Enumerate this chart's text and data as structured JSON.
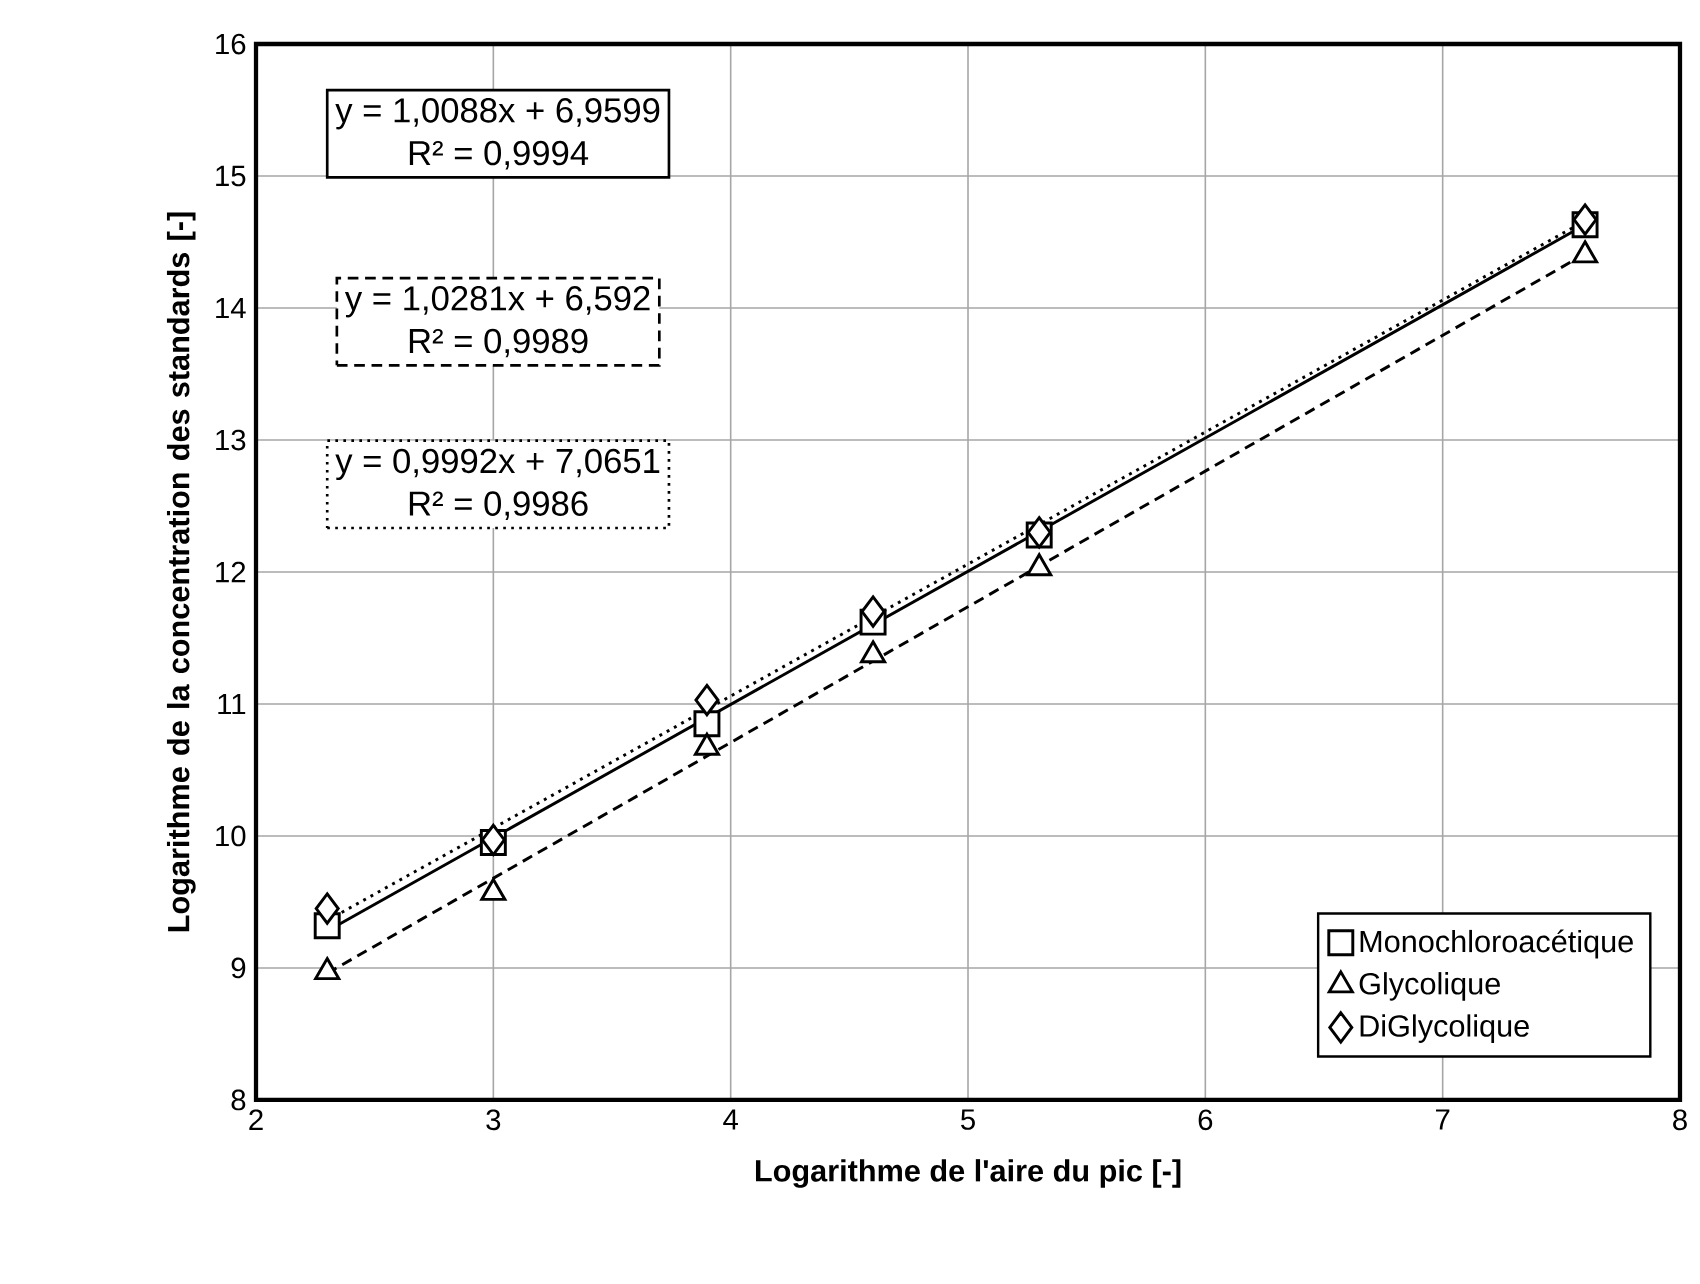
{
  "chart_data": {
    "type": "scatter",
    "xlabel": "Logarithme de l'aire du pic [-]",
    "ylabel": "Logarithme de la concentration des standards [-]",
    "xlim": [
      2,
      8
    ],
    "ylim": [
      8,
      16
    ],
    "xticks": [
      2,
      3,
      4,
      5,
      6,
      7,
      8
    ],
    "yticks": [
      8,
      9,
      10,
      11,
      12,
      13,
      14,
      15,
      16
    ],
    "grid": true,
    "legend": "bottom right",
    "series": [
      {
        "name": "Monochloroacétique",
        "marker": "square",
        "color": "#000000",
        "x": [
          2.3,
          3.0,
          3.9,
          4.6,
          5.3,
          7.6
        ],
        "values": [
          9.32,
          9.95,
          10.85,
          11.62,
          12.28,
          14.63
        ]
      },
      {
        "name": "Glycolique",
        "marker": "triangle",
        "color": "#000000",
        "x": [
          2.3,
          3.0,
          3.9,
          4.6,
          5.3,
          7.6
        ],
        "values": [
          8.97,
          9.57,
          10.67,
          11.37,
          12.03,
          14.4
        ]
      },
      {
        "name": "DiGlycolique",
        "marker": "diamond",
        "color": "#000000",
        "x": [
          2.3,
          3.0,
          3.9,
          4.6,
          5.3,
          7.6
        ],
        "values": [
          9.45,
          9.97,
          11.03,
          11.7,
          12.3,
          14.67
        ]
      },
      {
        "type": "line",
        "line_style": "solid",
        "color": "#000000",
        "x": [
          2.3,
          7.6
        ],
        "values": [
          9.28,
          14.63
        ]
      },
      {
        "type": "line",
        "line_style": "dashed",
        "color": "#000000",
        "x": [
          2.3,
          7.6
        ],
        "values": [
          8.96,
          14.41
        ]
      },
      {
        "type": "line",
        "line_style": "dotted",
        "color": "#000000",
        "x": [
          2.3,
          7.6
        ],
        "values": [
          9.36,
          14.66
        ]
      }
    ],
    "annotations": [
      "y = 1,0088x + 6,9599",
      "R² = 0,9994",
      "y = 1,0281x + 6,592",
      "R² = 0,9989",
      "y = 0,9992x + 7,0651",
      "R² = 0,9986"
    ]
  }
}
